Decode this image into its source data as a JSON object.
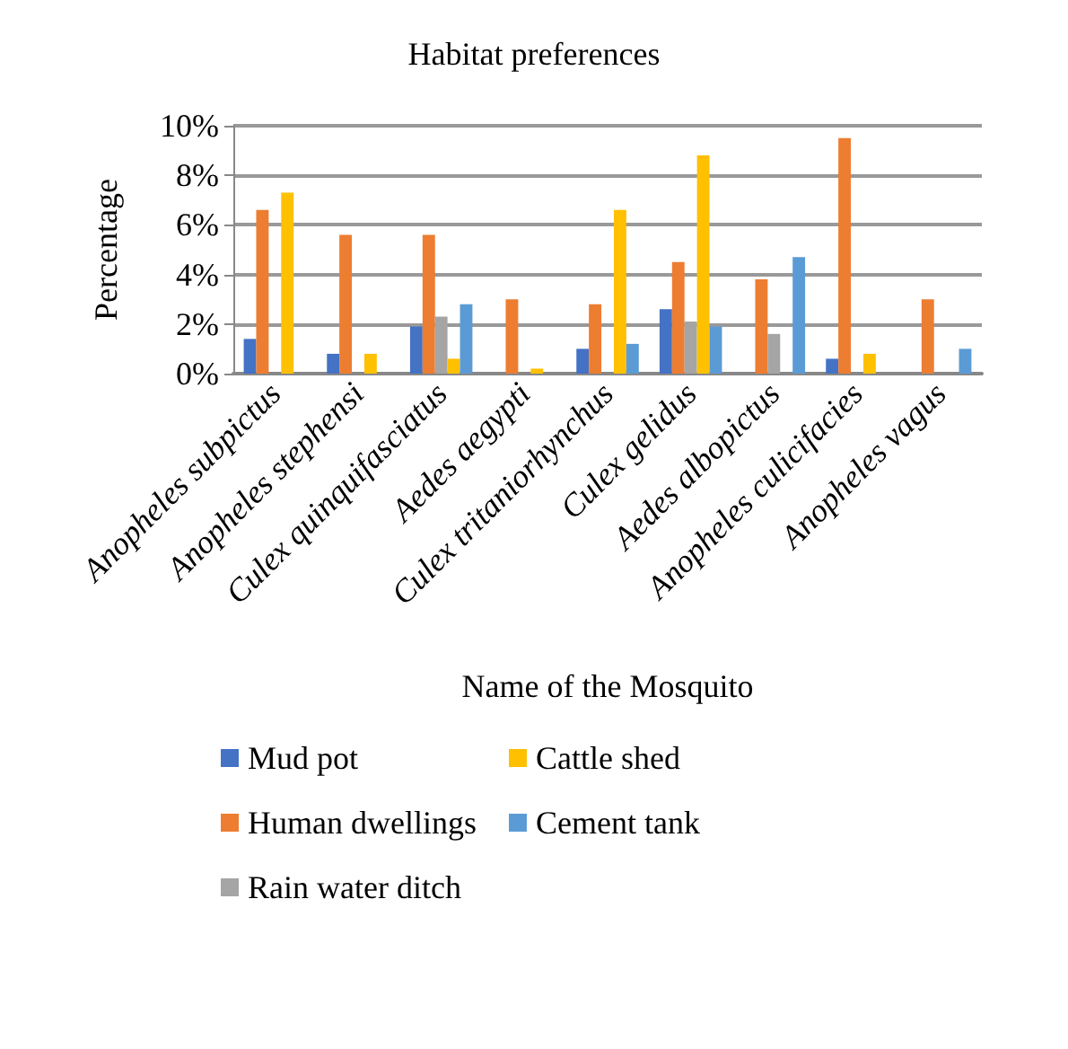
{
  "chart_data": {
    "type": "bar",
    "title": "Habitat preferences",
    "xlabel": "Name of the Mosquito",
    "ylabel": "Percentage",
    "categories": [
      "Anopheles subpictus",
      "Anopheles stephensi",
      "Culex quinquifasciatus",
      "Aedes aegypti",
      "Culex tritaniorhynchus",
      "Culex gelidus",
      "Aedes albopictus",
      "Anopheles culicifacies",
      "Anopheles vagus"
    ],
    "series": [
      {
        "name": "Mud pot",
        "color": "#4472c4",
        "values": [
          1.4,
          0.8,
          1.9,
          0,
          1.0,
          2.6,
          0,
          0.6,
          0
        ]
      },
      {
        "name": "Human dwellings",
        "color": "#ed7d31",
        "values": [
          6.6,
          5.6,
          5.6,
          3.0,
          2.8,
          4.5,
          3.8,
          9.5,
          3.0
        ]
      },
      {
        "name": "Rain water ditch",
        "color": "#a5a5a5",
        "values": [
          0,
          0,
          2.3,
          0,
          0,
          2.1,
          1.6,
          0,
          0
        ]
      },
      {
        "name": "Cattle shed",
        "color": "#ffc000",
        "values": [
          7.3,
          0.8,
          0.6,
          0.2,
          6.6,
          8.8,
          0,
          0.8,
          0
        ]
      },
      {
        "name": "Cement tank",
        "color": "#5b9bd5",
        "values": [
          0,
          0,
          2.8,
          0,
          1.2,
          1.9,
          4.7,
          0,
          1.0
        ]
      }
    ],
    "ylim": [
      0,
      10
    ],
    "yticks": [
      {
        "value": 0,
        "label": "0%"
      },
      {
        "value": 2,
        "label": "2%"
      },
      {
        "value": 4,
        "label": "4%"
      },
      {
        "value": 6,
        "label": "6%"
      },
      {
        "value": 8,
        "label": "8%"
      },
      {
        "value": 10,
        "label": "10%"
      }
    ],
    "grid": "y",
    "legend": "bottom"
  }
}
